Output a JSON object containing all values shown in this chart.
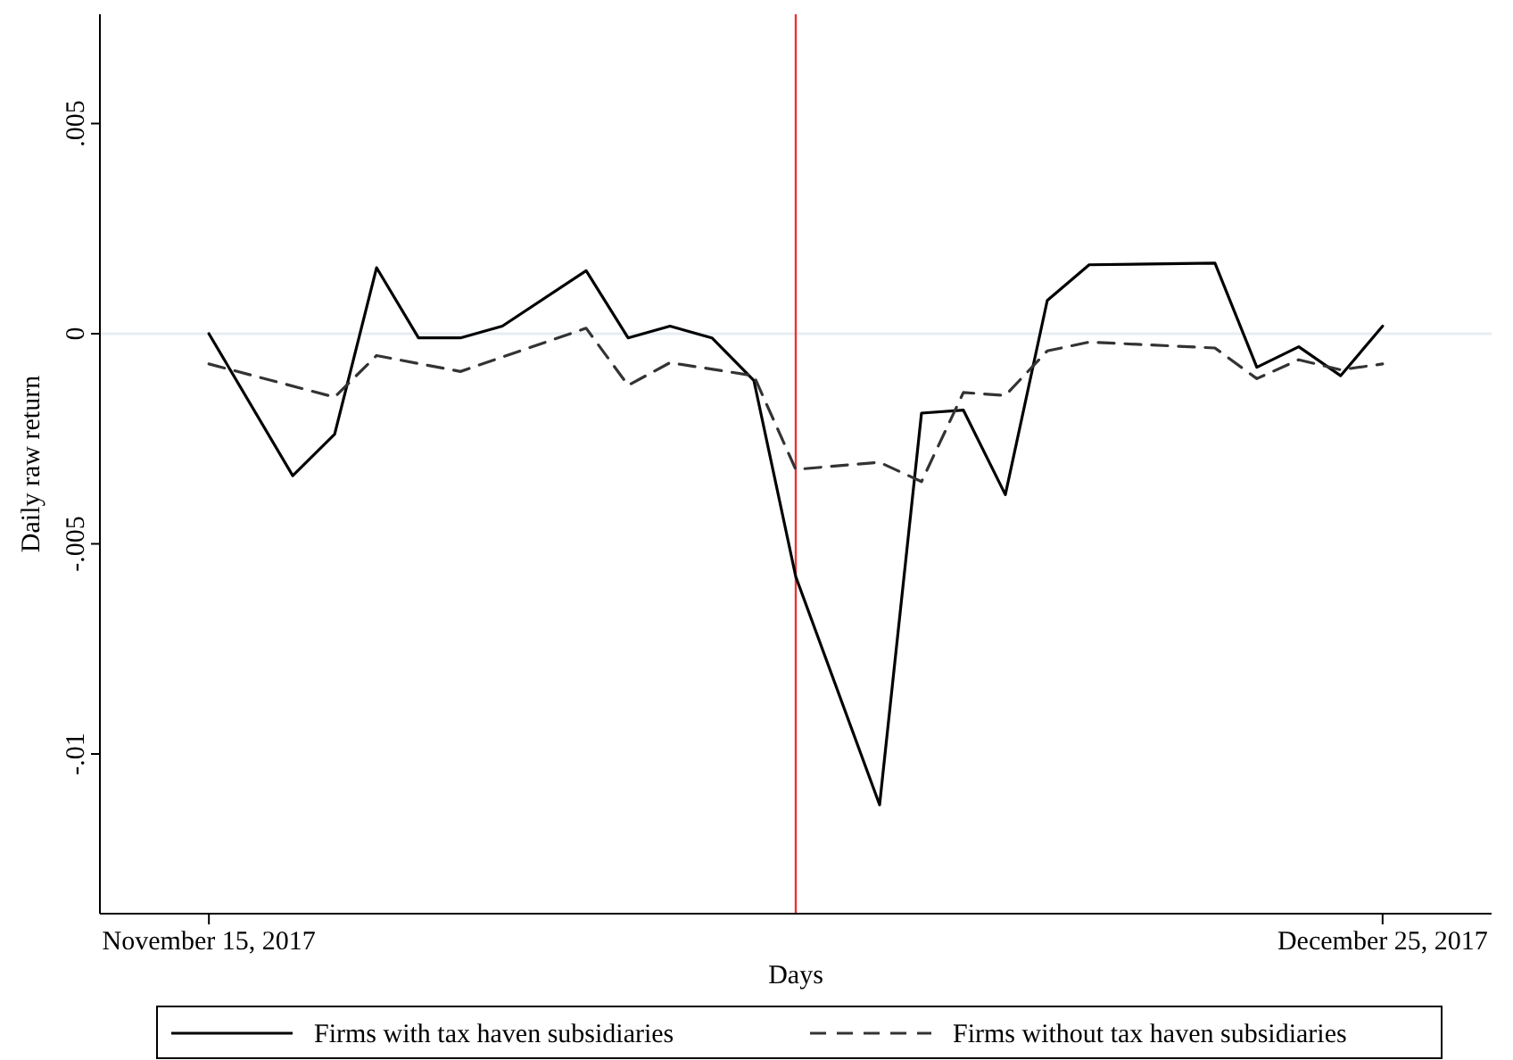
{
  "chart_data": {
    "type": "line",
    "xlabel": "Days",
    "ylabel": "Daily raw return",
    "categories": [
      "November 15, 2017",
      null,
      null,
      null,
      null,
      null,
      null,
      null,
      null,
      null,
      null,
      null,
      null,
      null,
      null,
      null,
      null,
      null,
      null,
      null,
      null,
      null,
      null,
      null,
      null,
      null,
      null,
      null,
      "December 25, 2017"
    ],
    "ylim": [
      -0.0138,
      0.0076
    ],
    "yticks": [
      {
        "value": 0.005,
        "label": ".005"
      },
      {
        "value": 0,
        "label": "0"
      },
      {
        "value": -0.005,
        "label": "-.005"
      },
      {
        "value": -0.01,
        "label": "-.01"
      }
    ],
    "grid": false,
    "legend": "bottom",
    "marker": "none",
    "ref_lines": [
      {
        "axis": "y",
        "value": 0,
        "color": "#e6edf3"
      }
    ],
    "series": [
      {
        "name": "Firms with tax haven subsidiaries",
        "color": "#000000",
        "line_style": "solid",
        "values": [
          0,
          null,
          -0.00338,
          -0.00239,
          0.00157,
          -0.0001,
          -0.0001,
          0.00018,
          null,
          0.0015,
          -0.0001,
          0.00018,
          -0.0001,
          -0.00111,
          -0.00578,
          null,
          -0.01121,
          -0.00189,
          -0.00182,
          -0.00383,
          0.00079,
          0.00164,
          null,
          null,
          0.00168,
          -0.0008,
          -0.00031,
          -0.001,
          0.00018
        ]
      },
      {
        "name": "Firms without tax haven subsidiaries",
        "color": "#333333",
        "line_style": "dashed",
        "values": [
          -0.00072,
          null,
          null,
          -0.00151,
          -0.00052,
          null,
          -0.0009,
          null,
          null,
          0.00013,
          -0.00123,
          -0.00069,
          null,
          -0.001,
          -0.00323,
          null,
          -0.00306,
          -0.00352,
          -0.0014,
          -0.00147,
          -0.00041,
          -0.0002,
          null,
          null,
          -0.00034,
          -0.00107,
          -0.00062,
          -0.00086,
          -0.00072
        ]
      }
    ]
  }
}
